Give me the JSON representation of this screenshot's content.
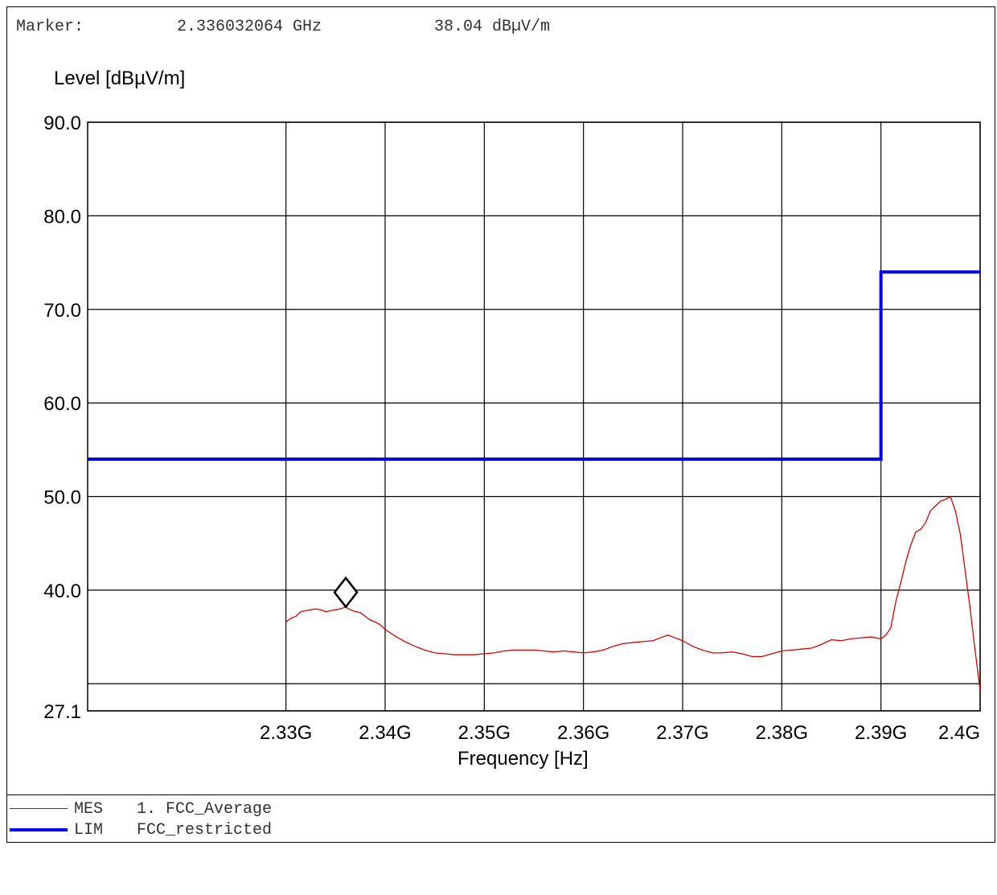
{
  "marker": {
    "label": "Marker:",
    "frequency": "2.336032064 GHz",
    "level": "38.04 dBµV/m"
  },
  "chart_data": {
    "type": "line",
    "ylabel": "Level [dBµV/m]",
    "xlabel": "Frequency [Hz]",
    "xlim": [
      2.31,
      2.4
    ],
    "ylim": [
      27.1,
      90.0
    ],
    "grid": true,
    "x_ticks": [
      {
        "value": 2.33,
        "label": "2.33G"
      },
      {
        "value": 2.34,
        "label": "2.34G"
      },
      {
        "value": 2.35,
        "label": "2.35G"
      },
      {
        "value": 2.36,
        "label": "2.36G"
      },
      {
        "value": 2.37,
        "label": "2.37G"
      },
      {
        "value": 2.38,
        "label": "2.38G"
      },
      {
        "value": 2.39,
        "label": "2.39G"
      },
      {
        "value": 2.4,
        "label": "2.4G"
      }
    ],
    "y_ticks": [
      {
        "value": 90,
        "label": "90.0"
      },
      {
        "value": 80,
        "label": "80.0"
      },
      {
        "value": 70,
        "label": "70.0"
      },
      {
        "value": 60,
        "label": "60.0"
      },
      {
        "value": 50,
        "label": "50.0"
      },
      {
        "value": 40,
        "label": "40.0"
      },
      {
        "value": 27.1,
        "label": "27.1"
      }
    ],
    "marker_point": {
      "x": 2.336032064,
      "y": 38.04
    },
    "series": [
      {
        "name": "MES 1. FCC_Average",
        "color": "#e00000",
        "x": [
          2.33,
          2.3305,
          2.331,
          2.3315,
          2.332,
          2.3325,
          2.333,
          2.3335,
          2.334,
          2.3345,
          2.335,
          2.3355,
          2.336,
          2.3365,
          2.337,
          2.3375,
          2.338,
          2.3385,
          2.339,
          2.3395,
          2.34,
          2.341,
          2.342,
          2.343,
          2.344,
          2.345,
          2.346,
          2.347,
          2.348,
          2.349,
          2.35,
          2.351,
          2.352,
          2.353,
          2.354,
          2.355,
          2.356,
          2.357,
          2.358,
          2.359,
          2.36,
          2.361,
          2.362,
          2.363,
          2.364,
          2.365,
          2.366,
          2.367,
          2.368,
          2.3685,
          2.369,
          2.37,
          2.371,
          2.372,
          2.373,
          2.374,
          2.375,
          2.376,
          2.377,
          2.378,
          2.379,
          2.38,
          2.381,
          2.382,
          2.383,
          2.384,
          2.385,
          2.386,
          2.387,
          2.388,
          2.389,
          2.39,
          2.3905,
          2.391,
          2.3915,
          2.392,
          2.3925,
          2.393,
          2.3935,
          2.394,
          2.3945,
          2.395,
          2.3955,
          2.396,
          2.3965,
          2.397,
          2.3975,
          2.398,
          2.3985,
          2.399,
          2.3995,
          2.4
        ],
        "y": [
          36.6,
          37.0,
          37.2,
          37.7,
          37.8,
          37.9,
          38.0,
          37.9,
          37.7,
          37.8,
          37.9,
          38.0,
          38.2,
          37.9,
          37.7,
          37.6,
          37.2,
          36.8,
          36.6,
          36.3,
          35.8,
          35.1,
          34.5,
          34.0,
          33.6,
          33.3,
          33.2,
          33.1,
          33.1,
          33.1,
          33.2,
          33.3,
          33.5,
          33.6,
          33.6,
          33.6,
          33.5,
          33.4,
          33.5,
          33.4,
          33.3,
          33.4,
          33.6,
          34.0,
          34.3,
          34.4,
          34.5,
          34.6,
          35.0,
          35.2,
          35.0,
          34.6,
          34.0,
          33.6,
          33.3,
          33.3,
          33.4,
          33.2,
          32.9,
          32.9,
          33.2,
          33.5,
          33.6,
          33.7,
          33.8,
          34.2,
          34.7,
          34.6,
          34.8,
          34.9,
          35.0,
          34.8,
          35.2,
          36.0,
          38.8,
          40.8,
          43.0,
          44.8,
          46.2,
          46.5,
          47.2,
          48.5,
          49.0,
          49.5,
          49.7,
          50.0,
          48.5,
          46.0,
          42.0,
          38.0,
          33.5,
          29.3
        ]
      },
      {
        "name": "LIM FCC_restricted",
        "color": "#0000ee",
        "x": [
          2.31,
          2.39,
          2.39,
          2.4
        ],
        "y": [
          54.0,
          54.0,
          74.0,
          74.0
        ]
      }
    ]
  },
  "legend": [
    {
      "code": "MES",
      "name": "1. FCC_Average",
      "color": "#e00000"
    },
    {
      "code": "LIM",
      "name": "FCC_restricted",
      "color": "#0000ee"
    }
  ]
}
